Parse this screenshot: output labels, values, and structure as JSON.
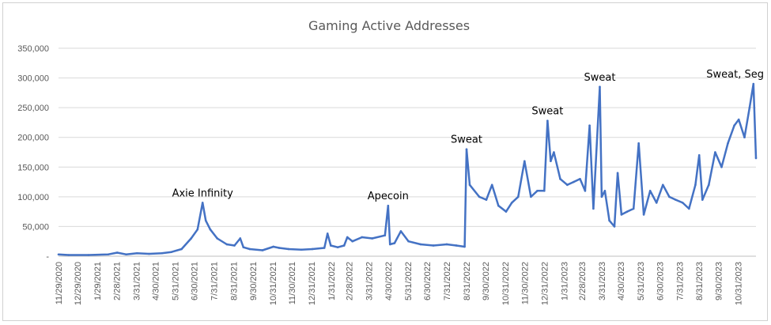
{
  "chart_data": {
    "type": "line",
    "title": "Gaming Active Addresses",
    "xlabel": "",
    "ylabel": "",
    "ylim": [
      0,
      350000
    ],
    "y_ticks": [
      0,
      50000,
      100000,
      150000,
      200000,
      250000,
      300000,
      350000
    ],
    "y_tick_labels": [
      "-",
      "50,000",
      "100,000",
      "150,000",
      "200,000",
      "250,000",
      "300,000",
      "350,000"
    ],
    "x_tick_labels": [
      "11/29/2020",
      "12/29/2020",
      "1/29/2021",
      "2/28/2021",
      "3/31/2021",
      "4/30/2021",
      "5/31/2021",
      "6/30/2021",
      "7/31/2021",
      "8/31/2021",
      "9/30/2021",
      "10/31/2021",
      "11/30/2021",
      "12/31/2021",
      "1/31/2022",
      "2/28/2022",
      "3/31/2022",
      "4/30/2022",
      "5/31/2022",
      "6/30/2022",
      "7/31/2022",
      "8/31/2022",
      "9/30/2022",
      "10/31/2022",
      "11/30/2022",
      "12/31/2022",
      "1/31/2023",
      "2/28/2023",
      "3/31/2023",
      "4/30/2023",
      "5/31/2023",
      "6/30/2023",
      "7/31/2023",
      "8/31/2023",
      "9/30/2023",
      "10/31/2023"
    ],
    "x_range": [
      "11/29/2020",
      "11/28/2023"
    ],
    "grid": true,
    "legend": "none",
    "line_color": "#4472C4",
    "series": [
      {
        "x": [
          "11/29/2020",
          "12/15/2020",
          "1/15/2021",
          "2/15/2021",
          "3/1/2021",
          "3/15/2021",
          "4/1/2021",
          "4/20/2021",
          "5/10/2021",
          "5/25/2021",
          "6/10/2021",
          "6/25/2021",
          "7/5/2021",
          "7/13/2021",
          "7/18/2021",
          "7/25/2021",
          "8/5/2021",
          "8/20/2021",
          "9/1/2021",
          "9/10/2021",
          "9/15/2021",
          "9/25/2021",
          "10/15/2021",
          "11/1/2021",
          "11/10/2021",
          "11/25/2021",
          "12/15/2021",
          "1/1/2022",
          "1/20/2022",
          "1/25/2022",
          "1/30/2022",
          "2/10/2022",
          "2/20/2022",
          "2/25/2022",
          "3/5/2022",
          "3/20/2022",
          "4/5/2022",
          "4/25/2022",
          "4/30/2022",
          "5/3/2022",
          "5/10/2022",
          "5/20/2022",
          "6/1/2022",
          "6/20/2022",
          "7/10/2022",
          "7/31/2022",
          "8/15/2022",
          "8/28/2022",
          "8/31/2022",
          "9/5/2022",
          "9/20/2022",
          "10/1/2022",
          "10/10/2022",
          "10/20/2022",
          "11/1/2022",
          "11/10/2022",
          "11/20/2022",
          "11/30/2022",
          "12/10/2022",
          "12/20/2022",
          "12/31/2022",
          "1/5/2023",
          "1/10/2023",
          "1/15/2023",
          "1/25/2023",
          "2/5/2023",
          "2/15/2023",
          "2/25/2023",
          "3/5/2023",
          "3/12/2023",
          "3/18/2023",
          "3/28/2023",
          "3/31/2023",
          "4/5/2023",
          "4/12/2023",
          "4/20/2023",
          "4/25/2023",
          "5/1/2023",
          "5/10/2023",
          "5/20/2023",
          "5/28/2023",
          "6/5/2023",
          "6/15/2023",
          "6/25/2023",
          "7/5/2023",
          "7/15/2023",
          "7/25/2023",
          "8/5/2023",
          "8/15/2023",
          "8/25/2023",
          "8/31/2023",
          "9/5/2023",
          "9/15/2023",
          "9/25/2023",
          "10/5/2023",
          "10/15/2023",
          "10/25/2023",
          "11/1/2023",
          "11/10/2023",
          "11/18/2023",
          "11/24/2023",
          "11/28/2023"
        ],
        "values": [
          3000,
          2000,
          2000,
          3000,
          6000,
          3000,
          5000,
          4000,
          5000,
          7000,
          12000,
          30000,
          45000,
          90000,
          60000,
          45000,
          30000,
          20000,
          18000,
          30000,
          15000,
          12000,
          10000,
          16000,
          14000,
          12000,
          11000,
          12000,
          14000,
          38000,
          18000,
          15000,
          18000,
          32000,
          25000,
          32000,
          30000,
          35000,
          85000,
          20000,
          22000,
          42000,
          25000,
          20000,
          18000,
          20000,
          18000,
          16000,
          180000,
          120000,
          100000,
          95000,
          120000,
          85000,
          75000,
          90000,
          100000,
          160000,
          100000,
          110000,
          110000,
          228000,
          160000,
          175000,
          130000,
          120000,
          125000,
          130000,
          110000,
          220000,
          80000,
          285000,
          100000,
          110000,
          60000,
          50000,
          140000,
          70000,
          75000,
          80000,
          190000,
          70000,
          110000,
          90000,
          120000,
          100000,
          95000,
          90000,
          80000,
          120000,
          170000,
          95000,
          120000,
          175000,
          150000,
          190000,
          220000,
          230000,
          200000,
          250000,
          290000,
          165000
        ]
      }
    ],
    "annotations": [
      {
        "text": "Axie Infinity",
        "x": "7/13/2021",
        "y": 90000
      },
      {
        "text": "Apecoin",
        "x": "4/30/2022",
        "y": 85000
      },
      {
        "text": "Sweat",
        "x": "8/31/2022",
        "y": 180000
      },
      {
        "text": "Sweat",
        "x": "1/5/2023",
        "y": 228000
      },
      {
        "text": "Sweat",
        "x": "3/28/2023",
        "y": 285000
      },
      {
        "text": "Sweat, Seg",
        "x": "11/24/2023",
        "y": 290000
      }
    ]
  }
}
